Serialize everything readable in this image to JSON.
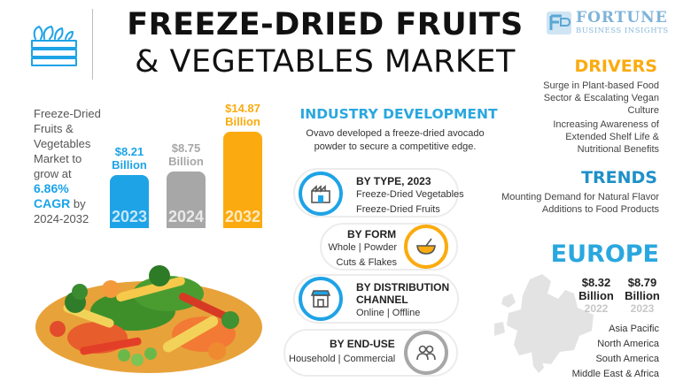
{
  "header": {
    "title_line1": "FREEZE-DRIED FRUITS",
    "title_line2": "& VEGETABLES MARKET",
    "brand_name": "FORTUNE",
    "brand_sub": "BUSINESS INSIGHTS",
    "icon": "crate-icon"
  },
  "intro": {
    "text": "Freeze-Dried Fruits & Vegetables Market to grow at",
    "cagr": "6.86% CAGR",
    "period": "by 2024-2032"
  },
  "chart_data": {
    "type": "bar",
    "categories": [
      "2023",
      "2024",
      "2032"
    ],
    "values": [
      8.21,
      8.75,
      14.87
    ],
    "value_labels": [
      "$8.21 Billion",
      "$8.75 Billion",
      "$14.87 Billion"
    ],
    "colors": [
      "#1ea3e6",
      "#a7a7a7",
      "#fbab0f"
    ],
    "unit": "Billion USD",
    "ylim": [
      0,
      16
    ],
    "grid": false
  },
  "industry": {
    "title": "INDUSTRY DEVELOPMENT",
    "text": "Ovavo developed a freeze-dried avocado powder to secure a competitive edge."
  },
  "segments": [
    {
      "head": "BY TYPE, 2023",
      "items": [
        "Freeze-Dried Vegetables",
        "Freeze-Dried Fruits"
      ],
      "icon": "factory-icon",
      "accent": "#1ea3e6"
    },
    {
      "head": "BY FORM",
      "items": [
        "Whole | Powder",
        "Cuts & Flakes"
      ],
      "icon": "bowl-icon",
      "accent": "#fbab0f"
    },
    {
      "head": "BY DISTRIBUTION CHANNEL",
      "items": [
        "Online | Offline"
      ],
      "icon": "store-icon",
      "accent": "#1ea3e6"
    },
    {
      "head": "BY END-USE",
      "items": [
        "Household | Commercial"
      ],
      "icon": "users-icon",
      "accent": "#a7a7a7"
    }
  ],
  "drivers": {
    "title": "DRIVERS",
    "items": [
      "Surge in Plant-based Food Sector & Escalating Vegan Culture",
      "Increasing Awareness of Extended Shelf Life & Nutritional Benefits"
    ]
  },
  "trends": {
    "title": "TRENDS",
    "text": "Mounting Demand for Natural Flavor Additions to Food Products"
  },
  "europe": {
    "title": "EUROPE",
    "values": [
      {
        "value": "$8.32 Billion",
        "year": "2022"
      },
      {
        "value": "$8.79 Billion",
        "year": "2023"
      }
    ],
    "regions": [
      "Asia Pacific",
      "North America",
      "South America",
      "Middle East & Africa"
    ]
  },
  "colors": {
    "blue": "#1ea3e6",
    "orange": "#fbab0f",
    "grey": "#a7a7a7",
    "industry_title": "#2aa7df"
  }
}
